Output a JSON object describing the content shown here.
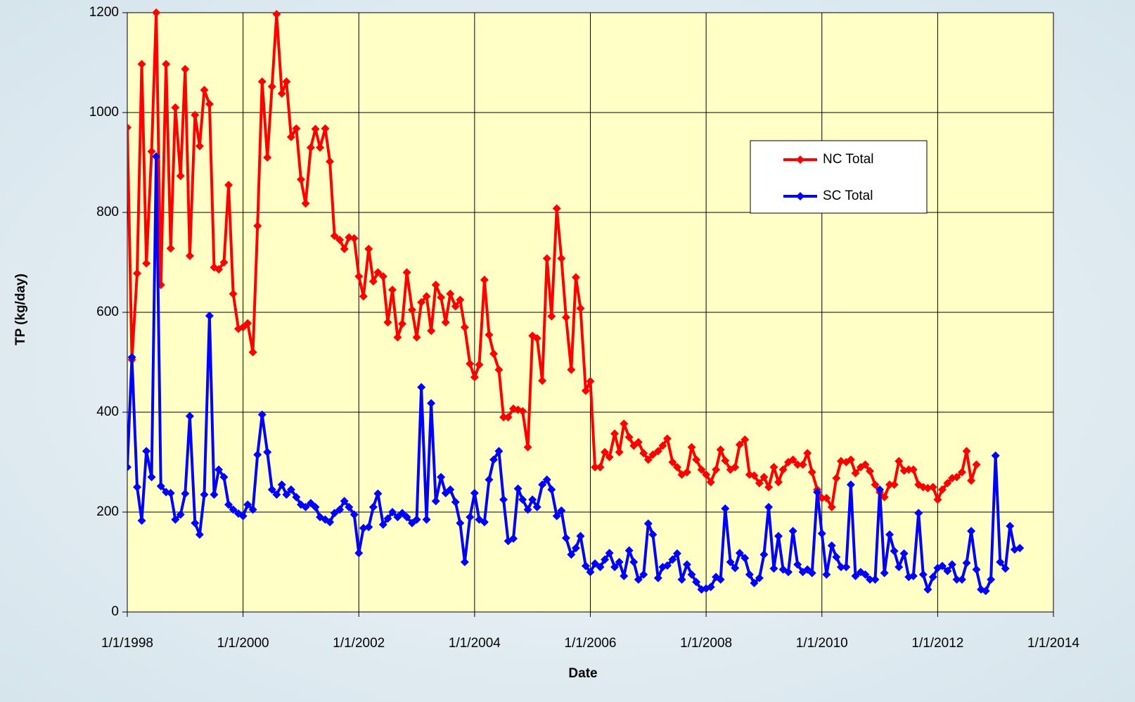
{
  "chart_data": {
    "type": "line",
    "xlabel": "Date",
    "ylabel": "TP (kg/day)",
    "xlim": [
      1998,
      2014
    ],
    "ylim": [
      0,
      1200
    ],
    "xticks": [
      {
        "value": 1998,
        "label": "1/1/1998"
      },
      {
        "value": 2000,
        "label": "1/1/2000"
      },
      {
        "value": 2002,
        "label": "1/1/2002"
      },
      {
        "value": 2004,
        "label": "1/1/2004"
      },
      {
        "value": 2006,
        "label": "1/1/2006"
      },
      {
        "value": 2008,
        "label": "1/1/2008"
      },
      {
        "value": 2010,
        "label": "1/1/2010"
      },
      {
        "value": 2012,
        "label": "1/1/2012"
      },
      {
        "value": 2014,
        "label": "1/1/2014"
      }
    ],
    "yticks": [
      0,
      200,
      400,
      600,
      800,
      1000,
      1200
    ],
    "grid": true,
    "x": [
      1998,
      1998.08,
      1998.17,
      1998.25,
      1998.33,
      1998.42,
      1998.5,
      1998.58,
      1998.67,
      1998.75,
      1998.83,
      1998.92,
      1999,
      1999.08,
      1999.17,
      1999.25,
      1999.33,
      1999.42,
      1999.5,
      1999.58,
      1999.67,
      1999.75,
      1999.83,
      1999.92,
      2000,
      2000.08,
      2000.17,
      2000.25,
      2000.33,
      2000.42,
      2000.5,
      2000.58,
      2000.67,
      2000.75,
      2000.83,
      2000.92,
      2001,
      2001.08,
      2001.17,
      2001.25,
      2001.33,
      2001.42,
      2001.5,
      2001.58,
      2001.67,
      2001.75,
      2001.83,
      2001.92,
      2002,
      2002.08,
      2002.17,
      2002.25,
      2002.33,
      2002.42,
      2002.5,
      2002.58,
      2002.67,
      2002.75,
      2002.83,
      2002.92,
      2003,
      2003.08,
      2003.17,
      2003.25,
      2003.33,
      2003.42,
      2003.5,
      2003.58,
      2003.67,
      2003.75,
      2003.83,
      2003.92,
      2004,
      2004.08,
      2004.17,
      2004.25,
      2004.33,
      2004.42,
      2004.5,
      2004.58,
      2004.67,
      2004.75,
      2004.83,
      2004.92,
      2005,
      2005.08,
      2005.17,
      2005.25,
      2005.33,
      2005.42,
      2005.5,
      2005.58,
      2005.67,
      2005.75,
      2005.83,
      2005.92,
      2006,
      2006.08,
      2006.17,
      2006.25,
      2006.33,
      2006.42,
      2006.5,
      2006.58,
      2006.67,
      2006.75,
      2006.83,
      2006.92,
      2007,
      2007.08,
      2007.17,
      2007.25,
      2007.33,
      2007.42,
      2007.5,
      2007.58,
      2007.67,
      2007.75,
      2007.83,
      2007.92,
      2008,
      2008.08,
      2008.17,
      2008.25,
      2008.33,
      2008.42,
      2008.5,
      2008.58,
      2008.67,
      2008.75,
      2008.83,
      2008.92,
      2009,
      2009.08,
      2009.17,
      2009.25,
      2009.33,
      2009.42,
      2009.5,
      2009.58,
      2009.67,
      2009.75,
      2009.83,
      2009.92,
      2010,
      2010.08,
      2010.17,
      2010.25,
      2010.33,
      2010.42,
      2010.5,
      2010.58,
      2010.67,
      2010.75,
      2010.83,
      2010.92,
      2011,
      2011.08,
      2011.17,
      2011.25,
      2011.33,
      2011.42,
      2011.5,
      2011.58,
      2011.67,
      2011.75,
      2011.83,
      2011.92,
      2012,
      2012.08,
      2012.17,
      2012.25,
      2012.33,
      2012.42,
      2012.5,
      2012.58,
      2012.67,
      2012.75,
      2012.83,
      2012.92,
      2013,
      2013.08,
      2013.17,
      2013.25,
      2013.33,
      2013.42
    ],
    "series": [
      {
        "name": "NC Total",
        "color": "#ff0000",
        "values": [
          970,
          505,
          678,
          1097,
          698,
          922,
          1200,
          655,
          1097,
          728,
          1010,
          873,
          1087,
          713,
          995,
          933,
          1045,
          1017,
          690,
          686,
          700,
          855,
          637,
          567,
          570,
          578,
          520,
          773,
          1062,
          910,
          1052,
          1197,
          1038,
          1062,
          951,
          968,
          866,
          818,
          930,
          967,
          930,
          968,
          902,
          753,
          745,
          727,
          750,
          748,
          672,
          632,
          727,
          662,
          680,
          672,
          580,
          645,
          550,
          577,
          680,
          605,
          550,
          620,
          632,
          563,
          655,
          630,
          580,
          637,
          612,
          625,
          570,
          497,
          470,
          495,
          665,
          555,
          517,
          485,
          390,
          390,
          407,
          405,
          402,
          330,
          553,
          548,
          463,
          708,
          592,
          808,
          708,
          590,
          485,
          670,
          608,
          443,
          462,
          290,
          290,
          320,
          310,
          357,
          320,
          377,
          350,
          333,
          340,
          318,
          305,
          315,
          322,
          333,
          347,
          300,
          290,
          275,
          280,
          330,
          305,
          285,
          275,
          260,
          285,
          325,
          303,
          285,
          290,
          335,
          345,
          275,
          273,
          258,
          270,
          250,
          290,
          260,
          285,
          300,
          305,
          295,
          295,
          318,
          280,
          245,
          228,
          228,
          210,
          268,
          302,
          300,
          305,
          278,
          290,
          295,
          282,
          255,
          240,
          230,
          255,
          255,
          302,
          283,
          285,
          285,
          255,
          250,
          248,
          250,
          225,
          245,
          258,
          268,
          270,
          280,
          322,
          263,
          295,
          null,
          null,
          null,
          null,
          null,
          null,
          null,
          null,
          null
        ]
      },
      {
        "name": "SC Total",
        "color": "#0000ff",
        "values": [
          290,
          510,
          250,
          183,
          322,
          270,
          912,
          252,
          240,
          238,
          185,
          195,
          237,
          392,
          178,
          155,
          235,
          593,
          235,
          285,
          270,
          215,
          205,
          197,
          192,
          215,
          205,
          315,
          395,
          320,
          245,
          235,
          255,
          235,
          245,
          230,
          215,
          210,
          218,
          210,
          190,
          185,
          180,
          198,
          205,
          222,
          210,
          195,
          118,
          168,
          170,
          210,
          237,
          175,
          187,
          200,
          190,
          198,
          190,
          178,
          185,
          450,
          185,
          418,
          222,
          270,
          238,
          245,
          220,
          178,
          100,
          190,
          238,
          185,
          180,
          265,
          305,
          322,
          225,
          142,
          147,
          247,
          225,
          205,
          225,
          210,
          255,
          265,
          245,
          192,
          203,
          148,
          115,
          128,
          152,
          92,
          80,
          97,
          90,
          105,
          118,
          90,
          100,
          72,
          123,
          100,
          65,
          75,
          177,
          155,
          68,
          90,
          93,
          105,
          117,
          65,
          95,
          75,
          60,
          45,
          47,
          50,
          70,
          65,
          207,
          100,
          88,
          118,
          108,
          75,
          58,
          68,
          115,
          210,
          87,
          152,
          85,
          80,
          162,
          95,
          80,
          85,
          78,
          240,
          157,
          75,
          133,
          110,
          90,
          90,
          255,
          72,
          80,
          75,
          65,
          65,
          245,
          78,
          155,
          122,
          90,
          117,
          70,
          72,
          198,
          75,
          45,
          70,
          88,
          92,
          82,
          95,
          65,
          65,
          98,
          162,
          85,
          45,
          42,
          65,
          313,
          100,
          87,
          172,
          125,
          128
        ]
      }
    ]
  }
}
